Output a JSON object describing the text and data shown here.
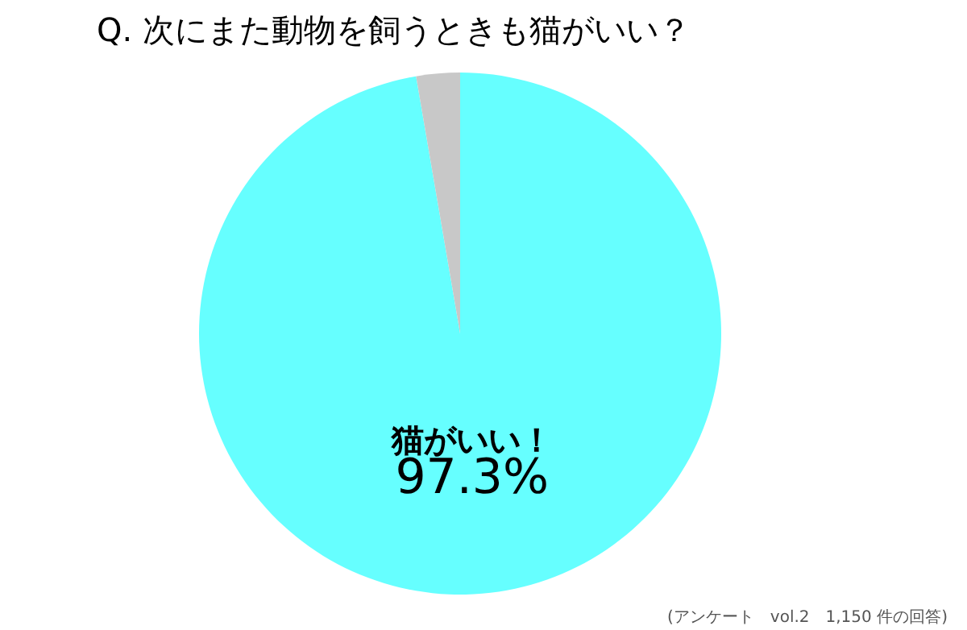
{
  "chart_data": {
    "type": "pie",
    "title": "Q. 次にまた動物を飼うときも猫がいい？",
    "categories": [
      "猫がいい！",
      null
    ],
    "values": [
      97.3,
      2.7
    ],
    "colors": [
      "#66ffff",
      "#c8c8c8"
    ],
    "value_labels": [
      "97.3%",
      null
    ],
    "legend": false,
    "annotations": [
      "(アンケート　vol.2　1,150 件の回答)"
    ]
  }
}
